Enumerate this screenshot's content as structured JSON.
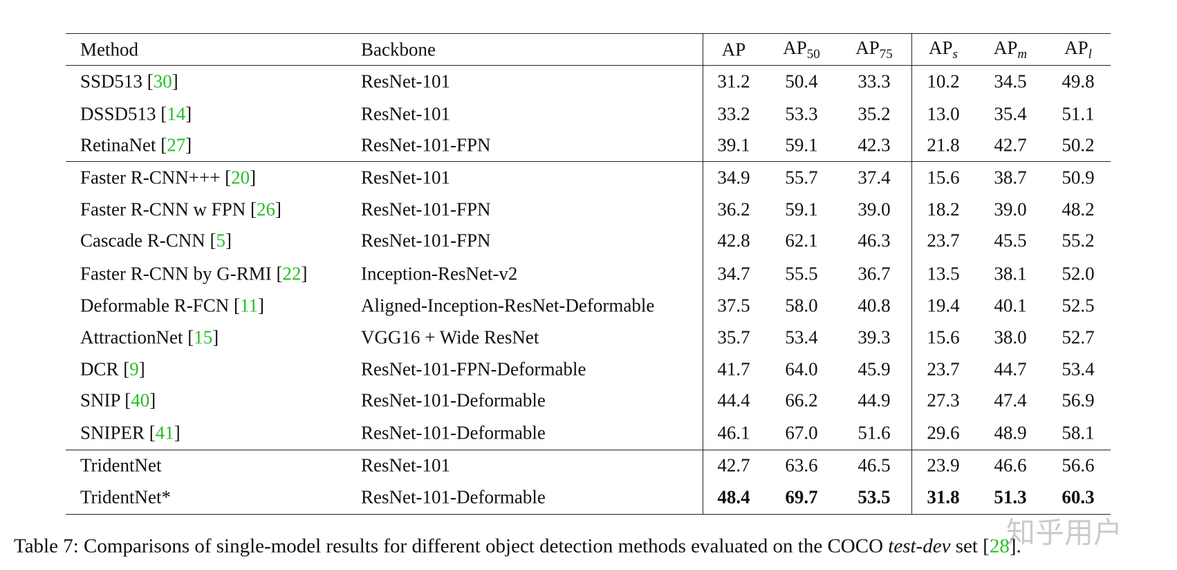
{
  "table": {
    "header": [
      {
        "text": "Method"
      },
      {
        "text": "Backbone"
      },
      {
        "text": "AP"
      },
      {
        "text": "AP",
        "sub": "50"
      },
      {
        "text": "AP",
        "sub": "75"
      },
      {
        "text": "AP",
        "sub": "s"
      },
      {
        "text": "AP",
        "sub": "m"
      },
      {
        "text": "AP",
        "sub": "l"
      }
    ],
    "groups": [
      [
        {
          "method": "SSD513 [30]",
          "backbone": "ResNet-101",
          "values": [
            "31.2",
            "50.4",
            "33.3",
            "10.2",
            "34.5",
            "49.8"
          ]
        },
        {
          "method": "DSSD513 [14]",
          "backbone": "ResNet-101",
          "values": [
            "33.2",
            "53.3",
            "35.2",
            "13.0",
            "35.4",
            "51.1"
          ]
        },
        {
          "method": "RetinaNet [27]",
          "backbone": "ResNet-101-FPN",
          "values": [
            "39.1",
            "59.1",
            "42.3",
            "21.8",
            "42.7",
            "50.2"
          ]
        }
      ],
      [
        {
          "method": "Faster R-CNN+++ [20]",
          "backbone": "ResNet-101",
          "values": [
            "34.9",
            "55.7",
            "37.4",
            "15.6",
            "38.7",
            "50.9"
          ]
        },
        {
          "method": "Faster R-CNN w FPN [26]",
          "backbone": "ResNet-101-FPN",
          "values": [
            "36.2",
            "59.1",
            "39.0",
            "18.2",
            "39.0",
            "48.2"
          ]
        },
        {
          "method": "Cascade R-CNN [5]",
          "backbone": "ResNet-101-FPN",
          "values": [
            "42.8",
            "62.1",
            "46.3",
            "23.7",
            "45.5",
            "55.2"
          ]
        },
        {
          "method": "Faster R-CNN by G-RMI [22]",
          "backbone": "Inception-ResNet-v2",
          "values": [
            "34.7",
            "55.5",
            "36.7",
            "13.5",
            "38.1",
            "52.0"
          ]
        },
        {
          "method": "Deformable R-FCN [11]",
          "backbone": "Aligned-Inception-ResNet-Deformable",
          "values": [
            "37.5",
            "58.0",
            "40.8",
            "19.4",
            "40.1",
            "52.5"
          ]
        },
        {
          "method": "AttractionNet [15]",
          "backbone": "VGG16 + Wide ResNet",
          "values": [
            "35.7",
            "53.4",
            "39.3",
            "15.6",
            "38.0",
            "52.7"
          ]
        },
        {
          "method": "DCR [9]",
          "backbone": "ResNet-101-FPN-Deformable",
          "values": [
            "41.7",
            "64.0",
            "45.9",
            "23.7",
            "44.7",
            "53.4"
          ]
        },
        {
          "method": "SNIP [40]",
          "backbone": "ResNet-101-Deformable",
          "values": [
            "44.4",
            "66.2",
            "44.9",
            "27.3",
            "47.4",
            "56.9"
          ]
        },
        {
          "method": "SNIPER [41]",
          "backbone": "ResNet-101-Deformable",
          "values": [
            "46.1",
            "67.0",
            "51.6",
            "29.6",
            "48.9",
            "58.1"
          ]
        }
      ],
      [
        {
          "method": "TridentNet",
          "backbone": "ResNet-101",
          "values": [
            "42.7",
            "63.6",
            "46.5",
            "23.9",
            "46.6",
            "56.6"
          ]
        },
        {
          "method": "TridentNet*",
          "backbone": "ResNet-101-Deformable",
          "values": [
            "48.4",
            "69.7",
            "53.5",
            "31.8",
            "51.3",
            "60.3"
          ],
          "bold": true
        }
      ]
    ]
  },
  "caption": {
    "label": "Table 7:",
    "before": "Comparisons of single-model results for different object detection methods evaluated on the COCO",
    "emph": "test-dev",
    "after": "set [28]."
  },
  "watermark": "知乎用户"
}
